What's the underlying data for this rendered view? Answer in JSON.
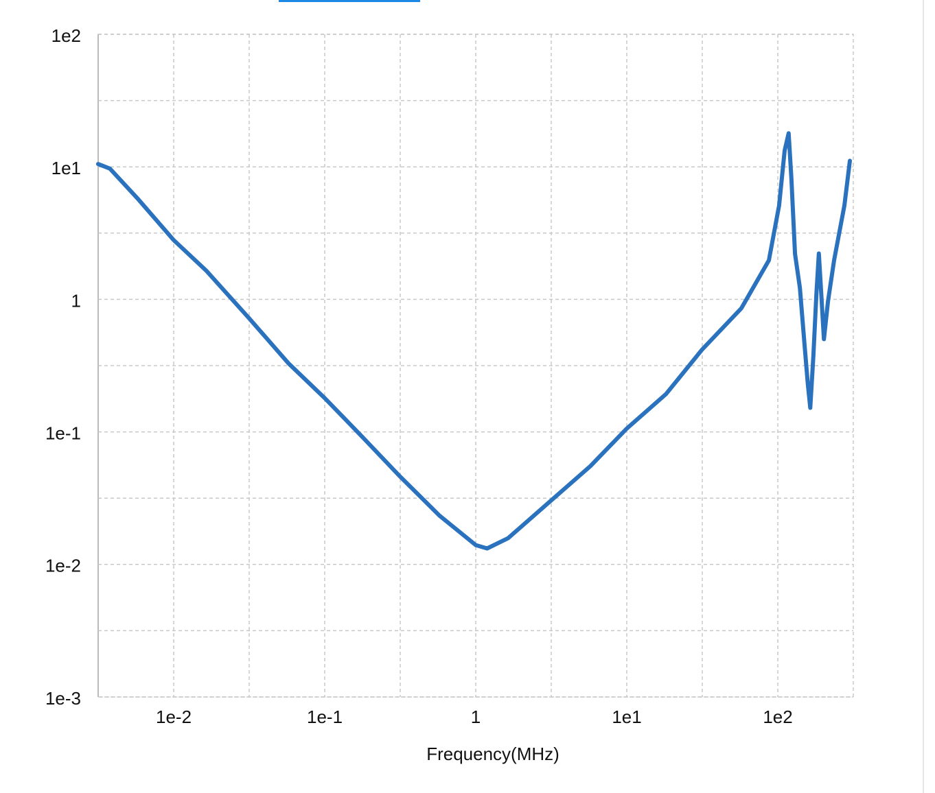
{
  "chart_data": {
    "type": "line",
    "x_label": "Frequency(MHz)",
    "log_x": true,
    "log_y": true,
    "grid": true,
    "xlim": [
      0.003162,
      316.2
    ],
    "ylim": [
      0.001,
      100
    ],
    "xticks": [
      {
        "value": 0.01,
        "label": "1e-2"
      },
      {
        "value": 0.1,
        "label": "1e-1"
      },
      1,
      {
        "value": 10,
        "label": "1e1"
      },
      {
        "value": 100,
        "label": "1e2"
      }
    ],
    "yticks": [
      {
        "value": 0.001,
        "label": "1e-3"
      },
      {
        "value": 0.01,
        "label": "1e-2"
      },
      {
        "value": 0.1,
        "label": "1e-1"
      },
      1,
      {
        "value": 10,
        "label": "1e1"
      },
      {
        "value": 100,
        "label": "1e2"
      }
    ],
    "xminor": [
      0.03162,
      0.3162,
      3.162,
      31.62
    ],
    "yminor": [
      0.003162,
      0.03162,
      0.3162,
      3.162,
      31.62
    ],
    "series": [
      {
        "color": "#2a72bd",
        "x": [
          0.00316,
          0.00378,
          0.00574,
          0.01,
          0.0164,
          0.0316,
          0.0574,
          0.1,
          0.182,
          0.316,
          0.574,
          1,
          1.19,
          1.64,
          3.16,
          5.74,
          10,
          18.2,
          31.6,
          57.4,
          87.3,
          102,
          111,
          118,
          123,
          130,
          140,
          150,
          158,
          164,
          172,
          180,
          187,
          193,
          202,
          215,
          236,
          276,
          300
        ],
        "values": [
          10.5,
          9.7,
          5.8,
          2.8,
          1.65,
          0.72,
          0.33,
          0.18,
          0.089,
          0.046,
          0.0234,
          0.014,
          0.0132,
          0.0158,
          0.0304,
          0.0552,
          0.106,
          0.193,
          0.419,
          0.857,
          1.97,
          5.1,
          13.3,
          17.9,
          8.2,
          2.2,
          1.22,
          0.472,
          0.231,
          0.152,
          0.372,
          1.09,
          2.22,
          1.22,
          0.501,
          0.965,
          1.97,
          5.1,
          11.1
        ]
      }
    ]
  }
}
